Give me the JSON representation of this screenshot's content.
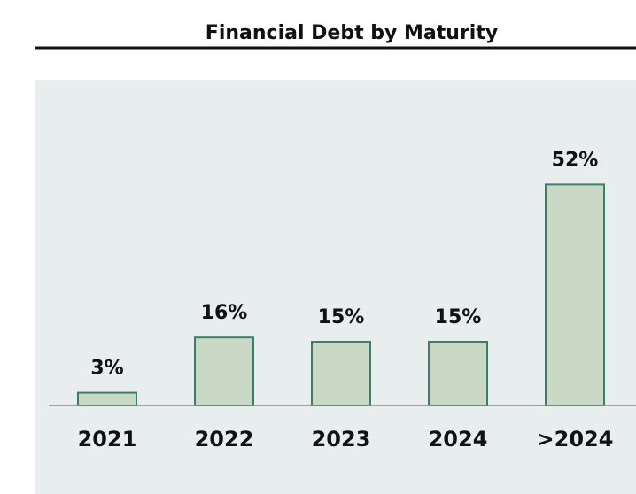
{
  "chart_data": {
    "type": "bar",
    "title": "Financial Debt by Maturity",
    "categories": [
      "2021",
      "2022",
      "2023",
      "2024",
      ">2024"
    ],
    "values": [
      3,
      16,
      15,
      15,
      52
    ],
    "value_labels": [
      "3%",
      "16%",
      "15%",
      "15%",
      "52%"
    ],
    "color": "#c9d9c6",
    "edge_color": "#3e7d6e"
  }
}
